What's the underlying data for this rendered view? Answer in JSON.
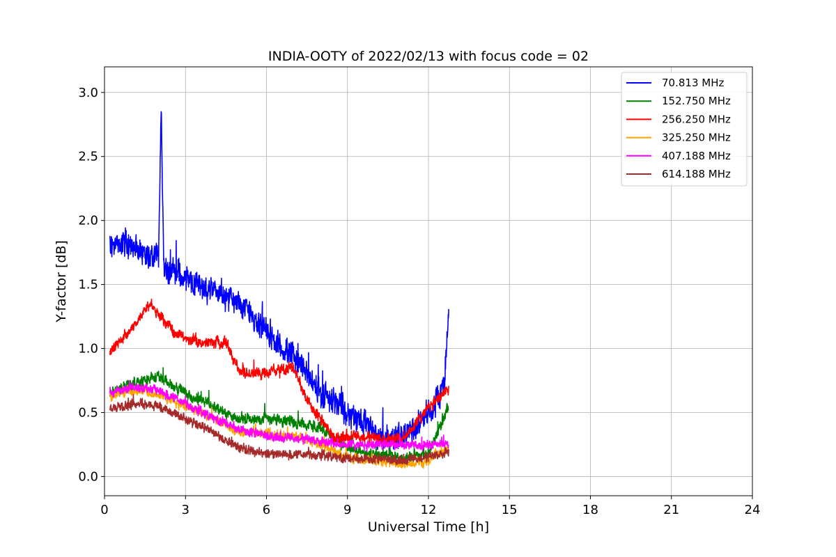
{
  "chart_data": {
    "type": "line",
    "title": "INDIA-OOTY of 2022/02/13 with focus code = 02",
    "xlabel": "Universal Time [h]",
    "ylabel": "Y-factor [dB]",
    "xlim": [
      0,
      24
    ],
    "ylim": [
      -0.15,
      3.2
    ],
    "xticks": [
      0,
      3,
      6,
      9,
      12,
      15,
      18,
      21,
      24
    ],
    "xtick_labels": [
      "0",
      "3",
      "6",
      "9",
      "12",
      "15",
      "18",
      "21",
      "24"
    ],
    "yticks": [
      0.0,
      0.5,
      1.0,
      1.5,
      2.0,
      2.5,
      3.0
    ],
    "ytick_labels": [
      "0.0",
      "0.5",
      "1.0",
      "1.5",
      "2.0",
      "2.5",
      "3.0"
    ],
    "grid": true,
    "legend_position": "top-right",
    "series": [
      {
        "name": " 70.813 MHz",
        "color": "#0000ff",
        "noise": 0.14,
        "x": [
          0.2,
          0.5,
          1.0,
          1.5,
          2.0,
          2.1,
          2.2,
          2.5,
          3.0,
          3.5,
          4.0,
          4.5,
          5.0,
          5.5,
          6.0,
          6.5,
          7.0,
          7.5,
          8.0,
          8.5,
          9.0,
          9.5,
          10.0,
          10.5,
          11.0,
          11.5,
          12.0,
          12.3,
          12.6,
          12.75
        ],
        "y": [
          1.8,
          1.85,
          1.8,
          1.75,
          1.7,
          2.9,
          1.6,
          1.6,
          1.55,
          1.5,
          1.45,
          1.4,
          1.35,
          1.25,
          1.15,
          1.0,
          0.95,
          0.8,
          0.65,
          0.6,
          0.5,
          0.45,
          0.35,
          0.3,
          0.3,
          0.4,
          0.5,
          0.6,
          0.75,
          1.3
        ]
      },
      {
        "name": "152.750 MHz",
        "color": "#008000",
        "noise": 0.06,
        "x": [
          0.2,
          1.0,
          2.0,
          3.0,
          4.0,
          5.0,
          6.0,
          7.0,
          8.0,
          8.5,
          9.0,
          10.0,
          11.0,
          12.0,
          12.75
        ],
        "y": [
          0.65,
          0.72,
          0.78,
          0.65,
          0.55,
          0.45,
          0.45,
          0.42,
          0.38,
          0.3,
          0.22,
          0.18,
          0.15,
          0.18,
          0.55
        ]
      },
      {
        "name": "256.250 MHz",
        "color": "#ff0000",
        "noise": 0.06,
        "x": [
          0.2,
          1.0,
          1.7,
          2.5,
          3.0,
          3.5,
          4.5,
          5.0,
          5.5,
          6.0,
          7.0,
          7.5,
          8.0,
          8.5,
          9.0,
          10.0,
          11.0,
          11.5,
          12.0,
          12.75
        ],
        "y": [
          0.97,
          1.15,
          1.35,
          1.15,
          1.08,
          1.05,
          1.05,
          0.82,
          0.8,
          0.82,
          0.85,
          0.6,
          0.45,
          0.3,
          0.32,
          0.3,
          0.3,
          0.4,
          0.55,
          0.68
        ]
      },
      {
        "name": "325.250 MHz",
        "color": "#ffa500",
        "noise": 0.05,
        "x": [
          0.2,
          1.0,
          2.0,
          3.0,
          4.0,
          5.0,
          6.0,
          7.0,
          8.0,
          9.0,
          10.0,
          11.0,
          12.0,
          12.75
        ],
        "y": [
          0.62,
          0.68,
          0.64,
          0.55,
          0.45,
          0.35,
          0.33,
          0.32,
          0.25,
          0.15,
          0.12,
          0.1,
          0.12,
          0.22
        ]
      },
      {
        "name": "407.188 MHz",
        "color": "#ff00ff",
        "noise": 0.05,
        "x": [
          0.2,
          1.0,
          2.0,
          3.0,
          4.0,
          5.0,
          6.0,
          7.0,
          8.0,
          9.0,
          10.0,
          11.0,
          12.0,
          12.75
        ],
        "y": [
          0.65,
          0.7,
          0.67,
          0.57,
          0.46,
          0.37,
          0.32,
          0.3,
          0.28,
          0.25,
          0.25,
          0.24,
          0.25,
          0.25
        ]
      },
      {
        "name": "614.188 MHz",
        "color": "#a52a2a",
        "noise": 0.05,
        "x": [
          0.2,
          1.0,
          2.0,
          3.0,
          4.0,
          5.0,
          6.0,
          7.0,
          8.0,
          9.0,
          10.0,
          11.0,
          12.0,
          12.75
        ],
        "y": [
          0.52,
          0.57,
          0.55,
          0.45,
          0.35,
          0.22,
          0.18,
          0.17,
          0.17,
          0.14,
          0.14,
          0.13,
          0.15,
          0.2
        ]
      }
    ]
  }
}
